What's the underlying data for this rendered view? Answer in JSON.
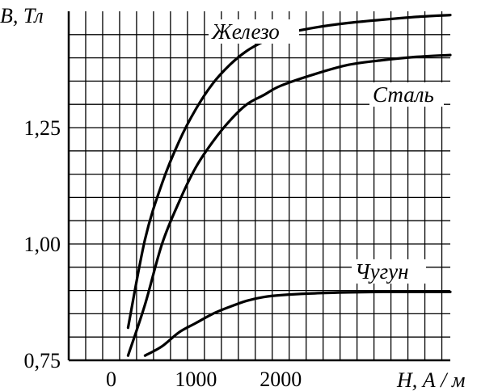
{
  "chart_data": {
    "type": "line",
    "ylabel": "B, Тл",
    "xlabel": "H, А / м",
    "xlim": [
      -500,
      4000
    ],
    "ylim": [
      0.75,
      1.5
    ],
    "x_ticks": [
      0,
      1000,
      2000
    ],
    "x_tick_labels": [
      "0",
      "1000",
      "2000"
    ],
    "y_ticks": [
      0.75,
      1.0,
      1.25
    ],
    "y_tick_labels": [
      "0,75",
      "1,00",
      "1,25"
    ],
    "grid": true,
    "series": [
      {
        "name": "Железо",
        "label_position": "top-right",
        "points": [
          [
            200,
            0.82
          ],
          [
            400,
            1.01
          ],
          [
            600,
            1.13
          ],
          [
            800,
            1.22
          ],
          [
            1000,
            1.29
          ],
          [
            1200,
            1.345
          ],
          [
            1400,
            1.385
          ],
          [
            1600,
            1.415
          ],
          [
            1800,
            1.435
          ],
          [
            2000,
            1.45
          ],
          [
            2400,
            1.465
          ],
          [
            2800,
            1.475
          ],
          [
            3200,
            1.482
          ],
          [
            3600,
            1.488
          ],
          [
            4000,
            1.492
          ]
        ]
      },
      {
        "name": "Сталь",
        "label_position": "right",
        "points": [
          [
            200,
            0.76
          ],
          [
            400,
            0.87
          ],
          [
            600,
            1.0
          ],
          [
            800,
            1.09
          ],
          [
            1000,
            1.165
          ],
          [
            1200,
            1.22
          ],
          [
            1400,
            1.265
          ],
          [
            1600,
            1.3
          ],
          [
            1800,
            1.32
          ],
          [
            2000,
            1.34
          ],
          [
            2400,
            1.365
          ],
          [
            2800,
            1.385
          ],
          [
            3200,
            1.395
          ],
          [
            3600,
            1.402
          ],
          [
            4000,
            1.406
          ]
        ]
      },
      {
        "name": "Чугун",
        "label_position": "right",
        "points": [
          [
            400,
            0.76
          ],
          [
            600,
            0.78
          ],
          [
            800,
            0.81
          ],
          [
            1000,
            0.83
          ],
          [
            1200,
            0.85
          ],
          [
            1400,
            0.865
          ],
          [
            1600,
            0.878
          ],
          [
            1800,
            0.886
          ],
          [
            2000,
            0.89
          ],
          [
            2400,
            0.894
          ],
          [
            2800,
            0.896
          ],
          [
            3200,
            0.897
          ],
          [
            3600,
            0.897
          ],
          [
            4000,
            0.897
          ]
        ]
      }
    ]
  }
}
